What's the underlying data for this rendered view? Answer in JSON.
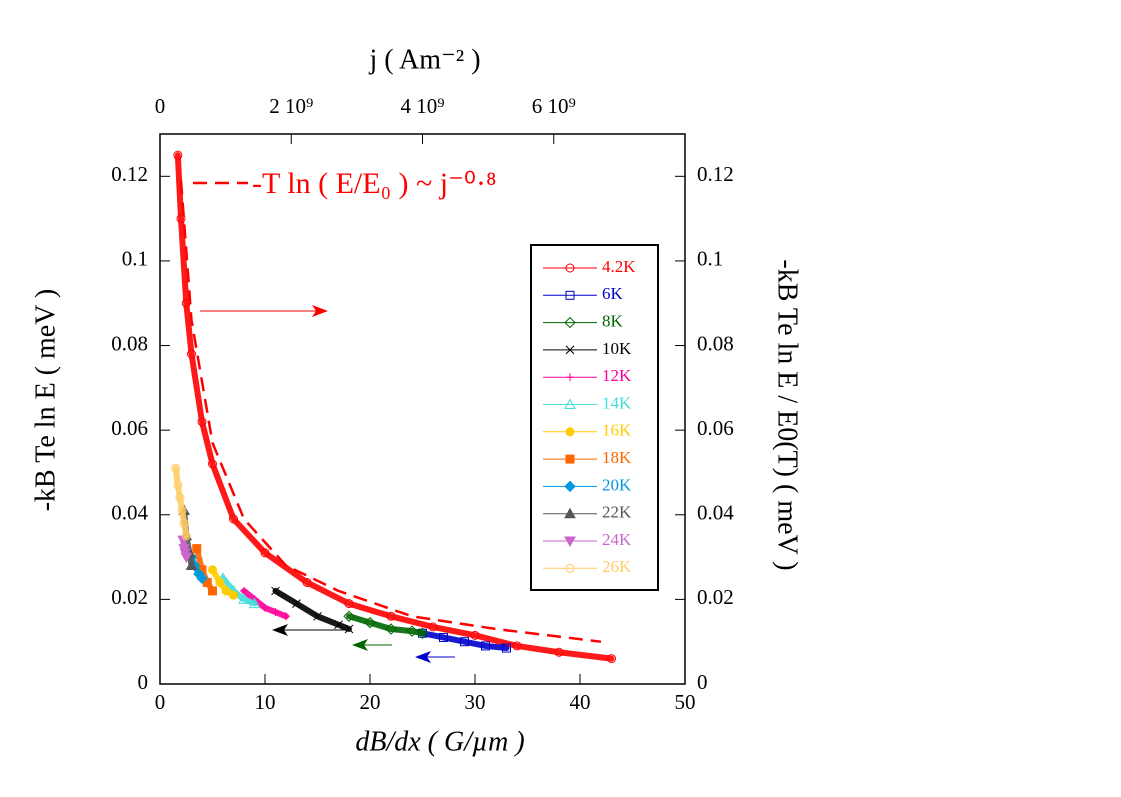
{
  "chart_data": {
    "type": "line",
    "x_label": "dB/dx ( G/µm )",
    "y_label": "-kB Te ln E ( meV )",
    "x2_label": "j ( Am⁻² )",
    "y2_label": "-kB Te ln E / E0(T) ( meV )",
    "xlim": [
      0,
      50
    ],
    "xticks": [
      0,
      10,
      20,
      30,
      40,
      50
    ],
    "ylim": [
      0,
      0.13
    ],
    "yticks": [
      0,
      0.02,
      0.04,
      0.06,
      0.08,
      0.1,
      0.12
    ],
    "x2lim": [
      0,
      8000000000
    ],
    "x2ticks": [
      {
        "value": 0,
        "label": "0"
      },
      {
        "value": 2000000000,
        "label": "2 10⁹"
      },
      {
        "value": 4000000000,
        "label": "4 10⁹"
      },
      {
        "value": 6000000000,
        "label": "6 10⁹"
      }
    ],
    "y2lim": [
      0,
      0.13
    ],
    "y2ticks": [
      0,
      0.02,
      0.04,
      0.06,
      0.08,
      0.1,
      0.12
    ],
    "fit": {
      "name": "-T ln ( E/E₀ ) ~ j⁻⁰·⁸",
      "color": "#ff0000",
      "dashed": true,
      "x": [
        2,
        3,
        5,
        8,
        12,
        17,
        24,
        32,
        42
      ],
      "values": [
        0.119,
        0.086,
        0.057,
        0.039,
        0.028,
        0.022,
        0.016,
        0.013,
        0.01
      ]
    },
    "series": [
      {
        "name": "4.2K",
        "color": "#ff0000",
        "marker": "circle-open",
        "x": [
          1.7,
          2,
          2.5,
          3,
          4,
          5,
          7,
          10,
          14,
          18,
          22,
          26,
          30,
          34,
          38,
          43
        ],
        "values": [
          0.125,
          0.11,
          0.09,
          0.078,
          0.062,
          0.052,
          0.039,
          0.031,
          0.024,
          0.019,
          0.016,
          0.0135,
          0.0115,
          0.009,
          0.0075,
          0.006
        ]
      },
      {
        "name": "6K",
        "color": "#0000cc",
        "marker": "square-open",
        "x": [
          25,
          27,
          29,
          31,
          33
        ],
        "values": [
          0.012,
          0.011,
          0.01,
          0.009,
          0.0085
        ]
      },
      {
        "name": "8K",
        "color": "#006600",
        "marker": "diamond-open",
        "x": [
          18,
          20,
          22,
          24,
          25
        ],
        "values": [
          0.016,
          0.0145,
          0.013,
          0.0125,
          0.012
        ]
      },
      {
        "name": "10K",
        "color": "#000000",
        "marker": "cross",
        "x": [
          11,
          13,
          15,
          17,
          18
        ],
        "values": [
          0.022,
          0.019,
          0.016,
          0.014,
          0.013
        ]
      },
      {
        "name": "12K",
        "color": "#ff0099",
        "marker": "plus",
        "x": [
          8,
          9,
          10,
          11,
          12
        ],
        "values": [
          0.022,
          0.02,
          0.018,
          0.017,
          0.016
        ]
      },
      {
        "name": "14K",
        "color": "#44dddd",
        "marker": "triangle-open",
        "x": [
          6,
          7,
          8,
          9
        ],
        "values": [
          0.025,
          0.022,
          0.02,
          0.019
        ]
      },
      {
        "name": "16K",
        "color": "#ffcc00",
        "marker": "circle",
        "x": [
          5,
          5.7,
          6.3,
          7
        ],
        "values": [
          0.027,
          0.024,
          0.022,
          0.021
        ]
      },
      {
        "name": "18K",
        "color": "#ff6600",
        "marker": "square",
        "x": [
          3.5,
          4,
          4.5,
          5
        ],
        "values": [
          0.032,
          0.027,
          0.024,
          0.022
        ]
      },
      {
        "name": "20K",
        "color": "#0099dd",
        "marker": "diamond",
        "x": [
          3,
          3.3,
          3.7,
          4
        ],
        "values": [
          0.03,
          0.028,
          0.026,
          0.025
        ]
      },
      {
        "name": "22K",
        "color": "#555555",
        "marker": "triangle",
        "x": [
          2.3,
          2.5,
          2.8,
          3
        ],
        "values": [
          0.041,
          0.035,
          0.031,
          0.028
        ]
      },
      {
        "name": "24K",
        "color": "#cc66cc",
        "marker": "triangle-down",
        "x": [
          2.2,
          2.3,
          2.4,
          2.5
        ],
        "values": [
          0.034,
          0.032,
          0.031,
          0.03
        ]
      },
      {
        "name": "26K",
        "color": "#ffcc66",
        "marker": "circle-open",
        "x": [
          1.5,
          1.7,
          1.9,
          2.1,
          2.3,
          2.5
        ],
        "values": [
          0.051,
          0.047,
          0.044,
          0.041,
          0.038,
          0.035
        ]
      }
    ]
  }
}
